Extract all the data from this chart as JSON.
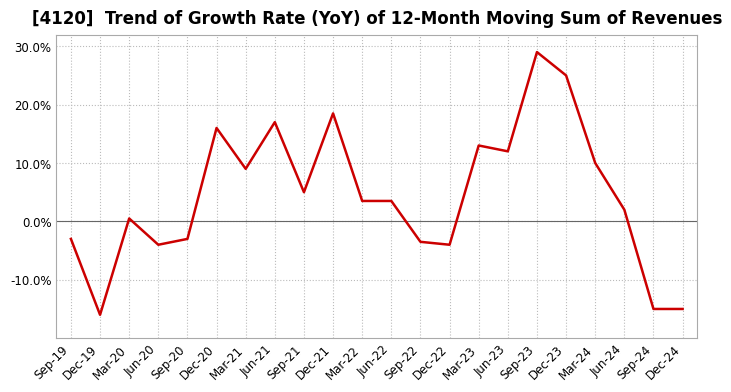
{
  "title": "[4120]  Trend of Growth Rate (YoY) of 12-Month Moving Sum of Revenues",
  "x_labels": [
    "Sep-19",
    "Dec-19",
    "Mar-20",
    "Jun-20",
    "Sep-20",
    "Dec-20",
    "Mar-21",
    "Jun-21",
    "Sep-21",
    "Dec-21",
    "Mar-22",
    "Jun-22",
    "Sep-22",
    "Dec-22",
    "Mar-23",
    "Jun-23",
    "Sep-23",
    "Dec-23",
    "Mar-24",
    "Jun-24",
    "Sep-24",
    "Dec-24"
  ],
  "y_values": [
    -3.0,
    -16.0,
    0.5,
    -4.0,
    -3.0,
    16.0,
    9.0,
    17.0,
    5.0,
    18.5,
    3.5,
    3.5,
    -3.5,
    -4.0,
    13.0,
    12.0,
    29.0,
    25.0,
    10.0,
    2.0,
    -15.0,
    -15.0
  ],
  "line_color": "#cc0000",
  "line_width": 1.8,
  "background_color": "#ffffff",
  "grid_color": "#bbbbbb",
  "ylim": [
    -20,
    32
  ],
  "yticks": [
    -10.0,
    0.0,
    10.0,
    20.0,
    30.0
  ],
  "zero_line_color": "#666666",
  "title_fontsize": 12,
  "tick_fontsize": 8.5
}
